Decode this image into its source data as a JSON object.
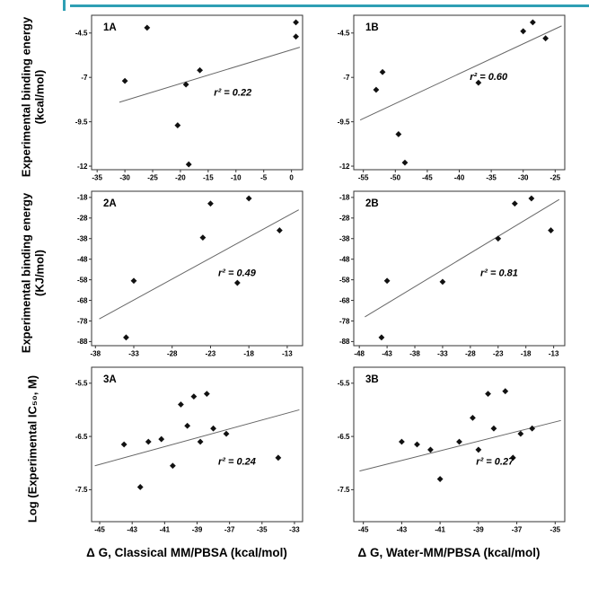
{
  "page": {
    "top_border_color": "#2f9fb4",
    "background": "#ffffff",
    "marker_color": "#111111",
    "trend_color": "#666666",
    "border_color": "#333333"
  },
  "ylabels": [
    "Experimental binding energy (kcal/mol)",
    "Experimental binding energy (KJ/mol)",
    "Log (Experimental IC₅₀, M)"
  ],
  "xtitles": [
    "Δ G, Classical MM/PBSA (kcal/mol)",
    "Δ G, Water-MM/PBSA (kcal/mol)"
  ],
  "chart_data": [
    {
      "id": "1A",
      "type": "scatter",
      "marker": "diamond",
      "xlim": [
        -36,
        2
      ],
      "xticks": [
        -35,
        -30,
        -25,
        -20,
        -15,
        -10,
        -5,
        0
      ],
      "ylim": [
        -12.2,
        -3.5
      ],
      "yticks": [
        -4.5,
        -7,
        -9.5,
        -12
      ],
      "points": [
        [
          -30,
          -7.2
        ],
        [
          -26,
          -4.2
        ],
        [
          -20.5,
          -9.7
        ],
        [
          -19,
          -7.4
        ],
        [
          -18.5,
          -11.9
        ],
        [
          -16.5,
          -6.6
        ],
        [
          0.8,
          -3.9
        ],
        [
          0.8,
          -4.7
        ]
      ],
      "trend": [
        [
          -31,
          -8.4
        ],
        [
          1.5,
          -5.3
        ]
      ],
      "r2_label": "r² = 0.22",
      "r2_pos": [
        0.58,
        0.52
      ]
    },
    {
      "id": "1B",
      "type": "scatter",
      "marker": "diamond",
      "xlim": [
        -56.5,
        -23.5
      ],
      "xticks": [
        -55,
        -50,
        -45,
        -40,
        -35,
        -30,
        -25
      ],
      "ylim": [
        -12.2,
        -3.5
      ],
      "yticks": [
        -4.5,
        -7,
        -9.5,
        -12
      ],
      "points": [
        [
          -53,
          -7.7
        ],
        [
          -52,
          -6.7
        ],
        [
          -49.5,
          -10.2
        ],
        [
          -48.5,
          -11.8
        ],
        [
          -37,
          -7.3
        ],
        [
          -30,
          -4.4
        ],
        [
          -28.5,
          -3.9
        ],
        [
          -26.5,
          -4.8
        ]
      ],
      "trend": [
        [
          -55.5,
          -9.4
        ],
        [
          -24,
          -4.1
        ]
      ],
      "r2_label": "r² = 0.60",
      "r2_pos": [
        0.55,
        0.42
      ]
    },
    {
      "id": "2A",
      "type": "scatter",
      "marker": "diamond",
      "xlim": [
        -38.5,
        -11
      ],
      "xticks": [
        -38,
        -33,
        -28,
        -23,
        -18,
        -13
      ],
      "ylim": [
        -90,
        -15
      ],
      "yticks": [
        -18,
        -28,
        -38,
        -48,
        -58,
        -68,
        -78,
        -88
      ],
      "points": [
        [
          -34,
          -86
        ],
        [
          -33,
          -58.5
        ],
        [
          -24,
          -37.5
        ],
        [
          -23,
          -21
        ],
        [
          -19.5,
          -59.5
        ],
        [
          -18,
          -18.5
        ],
        [
          -14,
          -34
        ]
      ],
      "trend": [
        [
          -37.5,
          -77
        ],
        [
          -11.5,
          -24
        ]
      ],
      "r2_label": "r² = 0.49",
      "r2_pos": [
        0.6,
        0.55
      ]
    },
    {
      "id": "2B",
      "type": "scatter",
      "marker": "diamond",
      "xlim": [
        -49,
        -11
      ],
      "xticks": [
        -48,
        -43,
        -38,
        -33,
        -28,
        -23,
        -18,
        -13
      ],
      "ylim": [
        -90,
        -15
      ],
      "yticks": [
        -18,
        -28,
        -38,
        -48,
        -58,
        -68,
        -78,
        -88
      ],
      "points": [
        [
          -44,
          -86
        ],
        [
          -43,
          -58.5
        ],
        [
          -33,
          -59
        ],
        [
          -23,
          -38
        ],
        [
          -20,
          -21
        ],
        [
          -17,
          -18.5
        ],
        [
          -13.5,
          -34
        ]
      ],
      "trend": [
        [
          -47,
          -76
        ],
        [
          -12,
          -19
        ]
      ],
      "r2_label": "r² = 0.81",
      "r2_pos": [
        0.6,
        0.55
      ]
    },
    {
      "id": "3A",
      "type": "scatter",
      "marker": "diamond",
      "xlim": [
        -45.5,
        -32.5
      ],
      "xticks": [
        -45,
        -43,
        -41,
        -39,
        -37,
        -35,
        -33
      ],
      "ylim": [
        -8.1,
        -5.2
      ],
      "yticks": [
        -5.5,
        -6.5,
        -7.5
      ],
      "points": [
        [
          -43.5,
          -6.65
        ],
        [
          -42.5,
          -7.45
        ],
        [
          -42,
          -6.6
        ],
        [
          -41.2,
          -6.55
        ],
        [
          -40.5,
          -7.05
        ],
        [
          -40,
          -5.9
        ],
        [
          -39.6,
          -6.3
        ],
        [
          -39.2,
          -5.75
        ],
        [
          -38.8,
          -6.6
        ],
        [
          -38.4,
          -5.7
        ],
        [
          -38,
          -6.35
        ],
        [
          -37.2,
          -6.45
        ],
        [
          -34,
          -6.9
        ]
      ],
      "trend": [
        [
          -45.3,
          -7.05
        ],
        [
          -32.7,
          -6.0
        ]
      ],
      "r2_label": "r² = 0.24",
      "r2_pos": [
        0.6,
        0.63
      ]
    },
    {
      "id": "3B",
      "type": "scatter",
      "marker": "diamond",
      "xlim": [
        -45.5,
        -34.5
      ],
      "xticks": [
        -45,
        -43,
        -41,
        -39,
        -37,
        -35
      ],
      "ylim": [
        -8.1,
        -5.2
      ],
      "yticks": [
        -5.5,
        -6.5,
        -7.5
      ],
      "points": [
        [
          -43,
          -6.6
        ],
        [
          -42.2,
          -6.65
        ],
        [
          -41.5,
          -6.75
        ],
        [
          -41,
          -7.3
        ],
        [
          -40,
          -6.6
        ],
        [
          -39.3,
          -6.15
        ],
        [
          -39,
          -6.75
        ],
        [
          -38.5,
          -5.7
        ],
        [
          -38.2,
          -6.35
        ],
        [
          -37.6,
          -5.65
        ],
        [
          -37.2,
          -6.9
        ],
        [
          -36.8,
          -6.45
        ],
        [
          -36.2,
          -6.35
        ]
      ],
      "trend": [
        [
          -45.2,
          -7.15
        ],
        [
          -34.7,
          -6.2
        ]
      ],
      "r2_label": "r² = 0.27",
      "r2_pos": [
        0.58,
        0.63
      ]
    }
  ]
}
